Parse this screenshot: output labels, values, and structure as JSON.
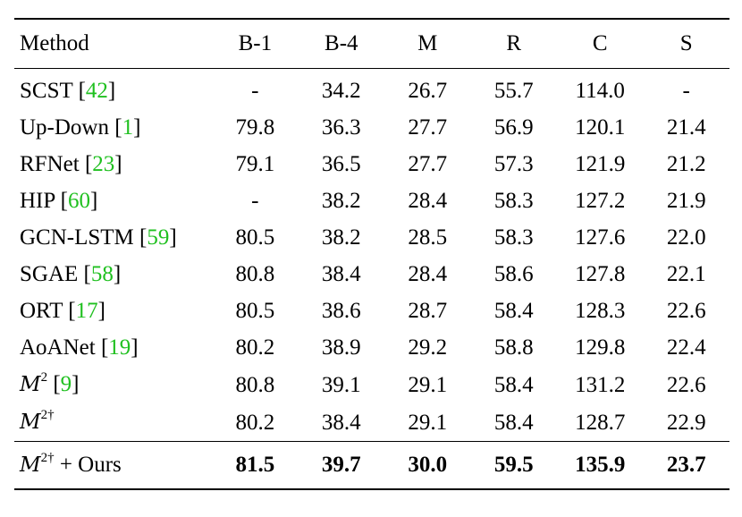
{
  "table": {
    "headers": [
      "Method",
      "B-1",
      "B-4",
      "M",
      "R",
      "C",
      "S"
    ],
    "rows": [
      {
        "name": "SCST",
        "ref": "42",
        "values": [
          "-",
          "34.2",
          "26.7",
          "55.7",
          "114.0",
          "-"
        ]
      },
      {
        "name": "Up-Down",
        "ref": "1",
        "values": [
          "79.8",
          "36.3",
          "27.7",
          "56.9",
          "120.1",
          "21.4"
        ]
      },
      {
        "name": "RFNet",
        "ref": "23",
        "values": [
          "79.1",
          "36.5",
          "27.7",
          "57.3",
          "121.9",
          "21.2"
        ]
      },
      {
        "name": "HIP",
        "ref": "60",
        "values": [
          "-",
          "38.2",
          "28.4",
          "58.3",
          "127.2",
          "21.9"
        ]
      },
      {
        "name": "GCN-LSTM",
        "ref": "59",
        "values": [
          "80.5",
          "38.2",
          "28.5",
          "58.3",
          "127.6",
          "22.0"
        ]
      },
      {
        "name": "SGAE",
        "ref": "58",
        "values": [
          "80.8",
          "38.4",
          "28.4",
          "58.6",
          "127.8",
          "22.1"
        ]
      },
      {
        "name": "ORT",
        "ref": "17",
        "values": [
          "80.5",
          "38.6",
          "28.7",
          "58.4",
          "128.3",
          "22.6"
        ]
      },
      {
        "name": "AoANet",
        "ref": "19",
        "values": [
          "80.2",
          "38.9",
          "29.2",
          "58.8",
          "129.8",
          "22.4"
        ]
      },
      {
        "name": "M",
        "sup": "2",
        "ref": "9",
        "values": [
          "80.8",
          "39.1",
          "29.1",
          "58.4",
          "131.2",
          "22.6"
        ]
      },
      {
        "name": "M",
        "sup": "2†",
        "ref": "",
        "values": [
          "80.2",
          "38.4",
          "29.1",
          "58.4",
          "128.7",
          "22.9"
        ]
      }
    ],
    "final": {
      "name": "M",
      "sup": "2†",
      "suffix": " + Ours",
      "values": [
        "81.5",
        "39.7",
        "30.0",
        "59.5",
        "135.9",
        "23.7"
      ]
    }
  },
  "colors": {
    "reference": "#20c020"
  }
}
